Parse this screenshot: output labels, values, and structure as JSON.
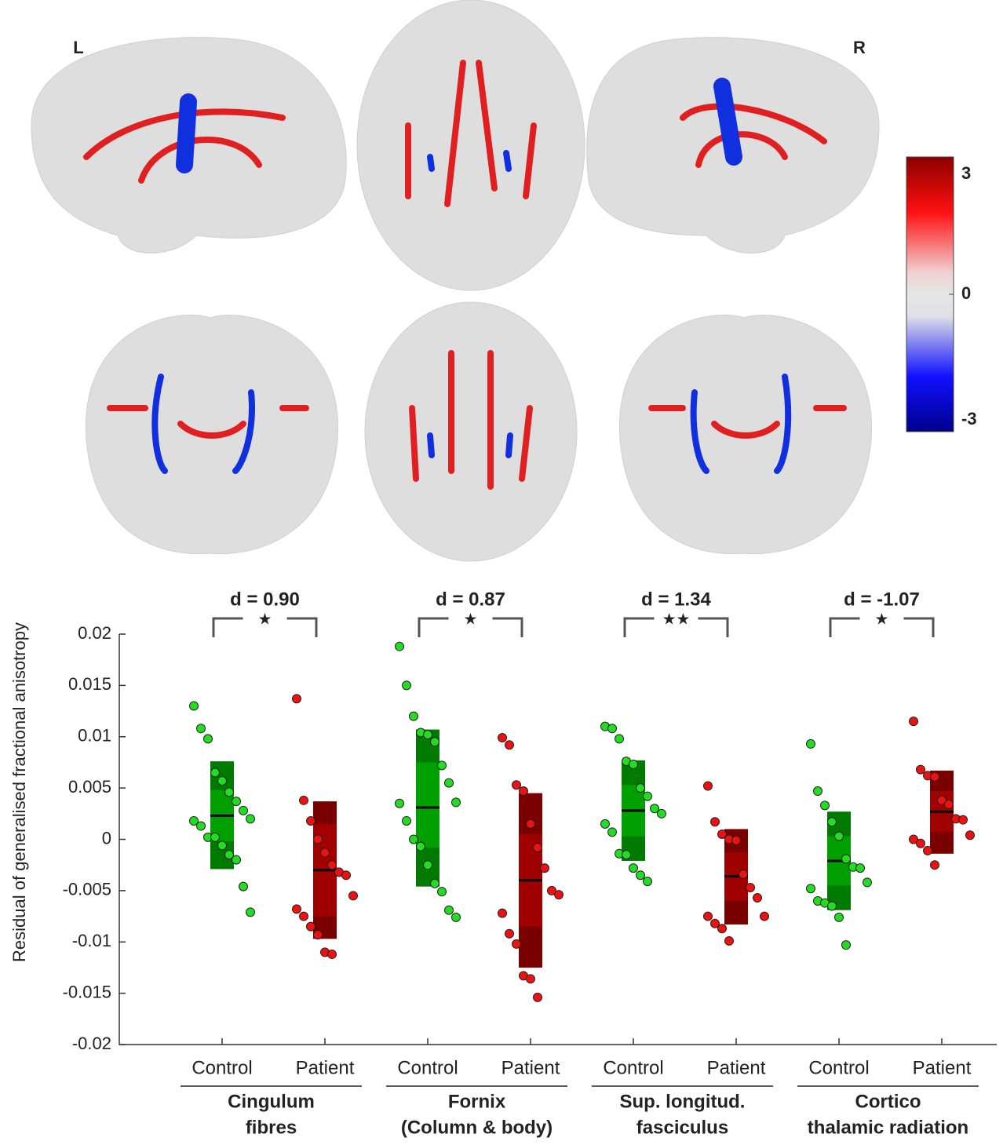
{
  "brain_panel": {
    "left_label": "L",
    "right_label": "R",
    "colorbar": {
      "lim": [
        -3,
        3
      ],
      "ticks": [
        3,
        0,
        -3
      ]
    }
  },
  "chart_data": {
    "type": "strip",
    "y_label": "Residual of generalised fractional anisotropy",
    "ylim": [
      -0.02,
      0.02
    ],
    "yticks": [
      0.02,
      0.015,
      0.01,
      0.005,
      0,
      -0.005,
      -0.01,
      -0.015,
      -0.02
    ],
    "groups": [
      {
        "category": "Control",
        "point_color": "#22dd22",
        "box_dark": "#007a00",
        "box_light": "#00a000",
        "mean": 0.0023,
        "inner": [
          0.0048,
          -0.0002
        ],
        "outer": [
          0.0076,
          -0.0029
        ],
        "points": [
          0.013,
          0.0108,
          0.0098,
          0.0065,
          0.0057,
          0.0046,
          0.0037,
          0.0028,
          0.002,
          0.0018,
          0.0013,
          0.0002,
          0.0002,
          -0.0006,
          -0.0015,
          -0.002,
          -0.0046,
          -0.0071
        ]
      },
      {
        "category": "Patient",
        "point_color": "#ee1111",
        "box_dark": "#7a0000",
        "box_light": "#a00000",
        "mean": -0.003,
        "inner": [
          0.0015,
          -0.0075
        ],
        "outer": [
          0.0037,
          -0.0097
        ],
        "points": [
          0.0137,
          0.0038,
          0.0018,
          0.0,
          -0.0013,
          -0.0025,
          -0.0032,
          -0.0035,
          -0.0055,
          -0.0068,
          -0.0075,
          -0.0085,
          -0.0093,
          -0.011,
          -0.0112
        ]
      },
      {
        "category": "Control",
        "point_color": "#22dd22",
        "box_dark": "#007a00",
        "box_light": "#00a000",
        "mean": 0.0031,
        "inner": [
          0.0075,
          -0.0008
        ],
        "outer": [
          0.0107,
          -0.0046
        ],
        "points": [
          0.0188,
          0.015,
          0.012,
          0.0104,
          0.0102,
          0.0095,
          0.0072,
          0.0055,
          0.0036,
          0.0035,
          0.0018,
          0.0,
          -0.0007,
          -0.0025,
          -0.0043,
          -0.0051,
          -0.0069,
          -0.0076
        ]
      },
      {
        "category": "Patient",
        "point_color": "#ee1111",
        "box_dark": "#7a0000",
        "box_light": "#a00000",
        "mean": -0.004,
        "inner": [
          0.0005,
          -0.0085
        ],
        "outer": [
          0.0045,
          -0.0125
        ],
        "points": [
          0.0099,
          0.0092,
          0.0053,
          0.0047,
          0.0015,
          -0.0008,
          -0.0028,
          -0.005,
          -0.0054,
          -0.0072,
          -0.0092,
          -0.0102,
          -0.0133,
          -0.0136,
          -0.0154
        ]
      },
      {
        "category": "Control",
        "point_color": "#22dd22",
        "box_dark": "#007a00",
        "box_light": "#00a000",
        "mean": 0.0028,
        "inner": [
          0.0053,
          0.0003
        ],
        "outer": [
          0.0077,
          -0.0021
        ],
        "points": [
          0.011,
          0.0108,
          0.0098,
          0.0076,
          0.0073,
          0.005,
          0.0042,
          0.003,
          0.0025,
          0.0015,
          0.0007,
          -0.0014,
          -0.0015,
          -0.0028,
          -0.0035,
          -0.0041
        ]
      },
      {
        "category": "Patient",
        "point_color": "#ee1111",
        "box_dark": "#7a0000",
        "box_light": "#a00000",
        "mean": -0.0036,
        "inner": [
          -0.0013,
          -0.006
        ],
        "outer": [
          0.001,
          -0.0083
        ],
        "points": [
          0.0052,
          0.0017,
          0.0005,
          0.0,
          -0.0001,
          -0.0034,
          -0.0047,
          -0.0057,
          -0.0075,
          -0.0075,
          -0.0082,
          -0.0087,
          -0.0099
        ]
      },
      {
        "category": "Control",
        "point_color": "#22dd22",
        "box_dark": "#007a00",
        "box_light": "#00a000",
        "mean": -0.0021,
        "inner": [
          0.0003,
          -0.0045
        ],
        "outer": [
          0.0027,
          -0.0069
        ],
        "points": [
          0.0093,
          0.0047,
          0.0033,
          0.0017,
          0.0003,
          -0.0019,
          -0.0027,
          -0.0028,
          -0.0042,
          -0.0048,
          -0.006,
          -0.0062,
          -0.0065,
          -0.0076,
          -0.0103
        ]
      },
      {
        "category": "Patient",
        "point_color": "#ee1111",
        "box_dark": "#7a0000",
        "box_light": "#a00000",
        "mean": 0.0027,
        "inner": [
          0.0047,
          0.0007
        ],
        "outer": [
          0.0067,
          -0.0014
        ],
        "points": [
          0.0115,
          0.0068,
          0.0062,
          0.0061,
          0.0038,
          0.0034,
          0.002,
          0.0019,
          0.0004,
          0.0,
          -0.0004,
          -0.0011,
          -0.0025
        ]
      }
    ],
    "comparisons": [
      {
        "label": "d = 0.90",
        "stars": "★"
      },
      {
        "label": "d = 0.87",
        "stars": "★"
      },
      {
        "label": "d = 1.34",
        "stars": "★★"
      },
      {
        "label": "d = -1.07",
        "stars": "★"
      }
    ],
    "tracts": [
      {
        "lines": [
          "Cingulum",
          "fibres"
        ],
        "color": "#8b1a0e"
      },
      {
        "lines": [
          "Fornix",
          "(Column & body)"
        ],
        "color": "#8b1a0e"
      },
      {
        "lines": [
          "Sup. longitud.",
          "fasciculus"
        ],
        "color": "#8b1a0e"
      },
      {
        "lines": [
          "Cortico",
          "thalamic radiation"
        ],
        "color": "#1a4f8a"
      }
    ]
  }
}
